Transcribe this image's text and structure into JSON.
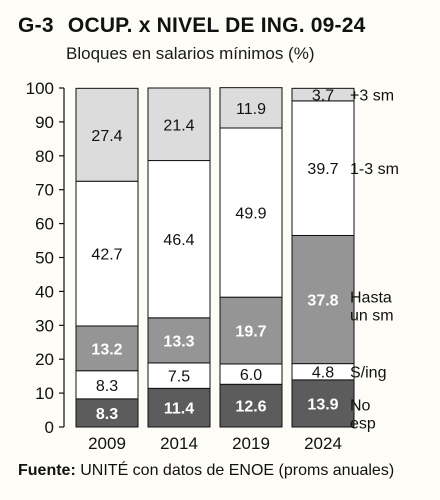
{
  "header": {
    "code": "G-3",
    "title": "OCUP. x NIVEL DE ING. 09-24",
    "subtitle": "Bloques en salarios mínimos (%)"
  },
  "footer": {
    "source_label": "Fuente:",
    "source_text": "UNITÉ con datos de ENOE (proms anuales)"
  },
  "chart_data": {
    "type": "bar",
    "stacked": true,
    "categories": [
      "2009",
      "2014",
      "2019",
      "2024"
    ],
    "ylim": [
      0,
      100
    ],
    "yticks": [
      0,
      10,
      20,
      30,
      40,
      50,
      60,
      70,
      80,
      90,
      100
    ],
    "series": [
      {
        "name": "No esp",
        "label_lines": [
          "No",
          "esp"
        ],
        "color": "#5c5c5c",
        "text_color": "#ffffff",
        "values": [
          8.3,
          11.4,
          12.6,
          13.9
        ]
      },
      {
        "name": "S/ing",
        "label_lines": [
          "S/ing"
        ],
        "color": "#ffffff",
        "text_color": "#111111",
        "values": [
          8.3,
          7.5,
          6.0,
          4.8
        ]
      },
      {
        "name": "Hasta un sm",
        "label_lines": [
          "Hasta",
          "un sm"
        ],
        "color": "#959595",
        "text_color": "#ffffff",
        "values": [
          13.2,
          13.3,
          19.7,
          37.8
        ]
      },
      {
        "name": "1-3 sm",
        "label_lines": [
          "1-3 sm"
        ],
        "color": "#ffffff",
        "text_color": "#111111",
        "values": [
          42.7,
          46.4,
          49.9,
          39.7
        ]
      },
      {
        "name": "+3 sm",
        "label_lines": [
          "+3 sm"
        ],
        "color": "#dcdcdc",
        "text_color": "#111111",
        "values": [
          27.4,
          21.4,
          11.9,
          3.7
        ]
      }
    ],
    "grid": false,
    "legend": "right-inline"
  }
}
